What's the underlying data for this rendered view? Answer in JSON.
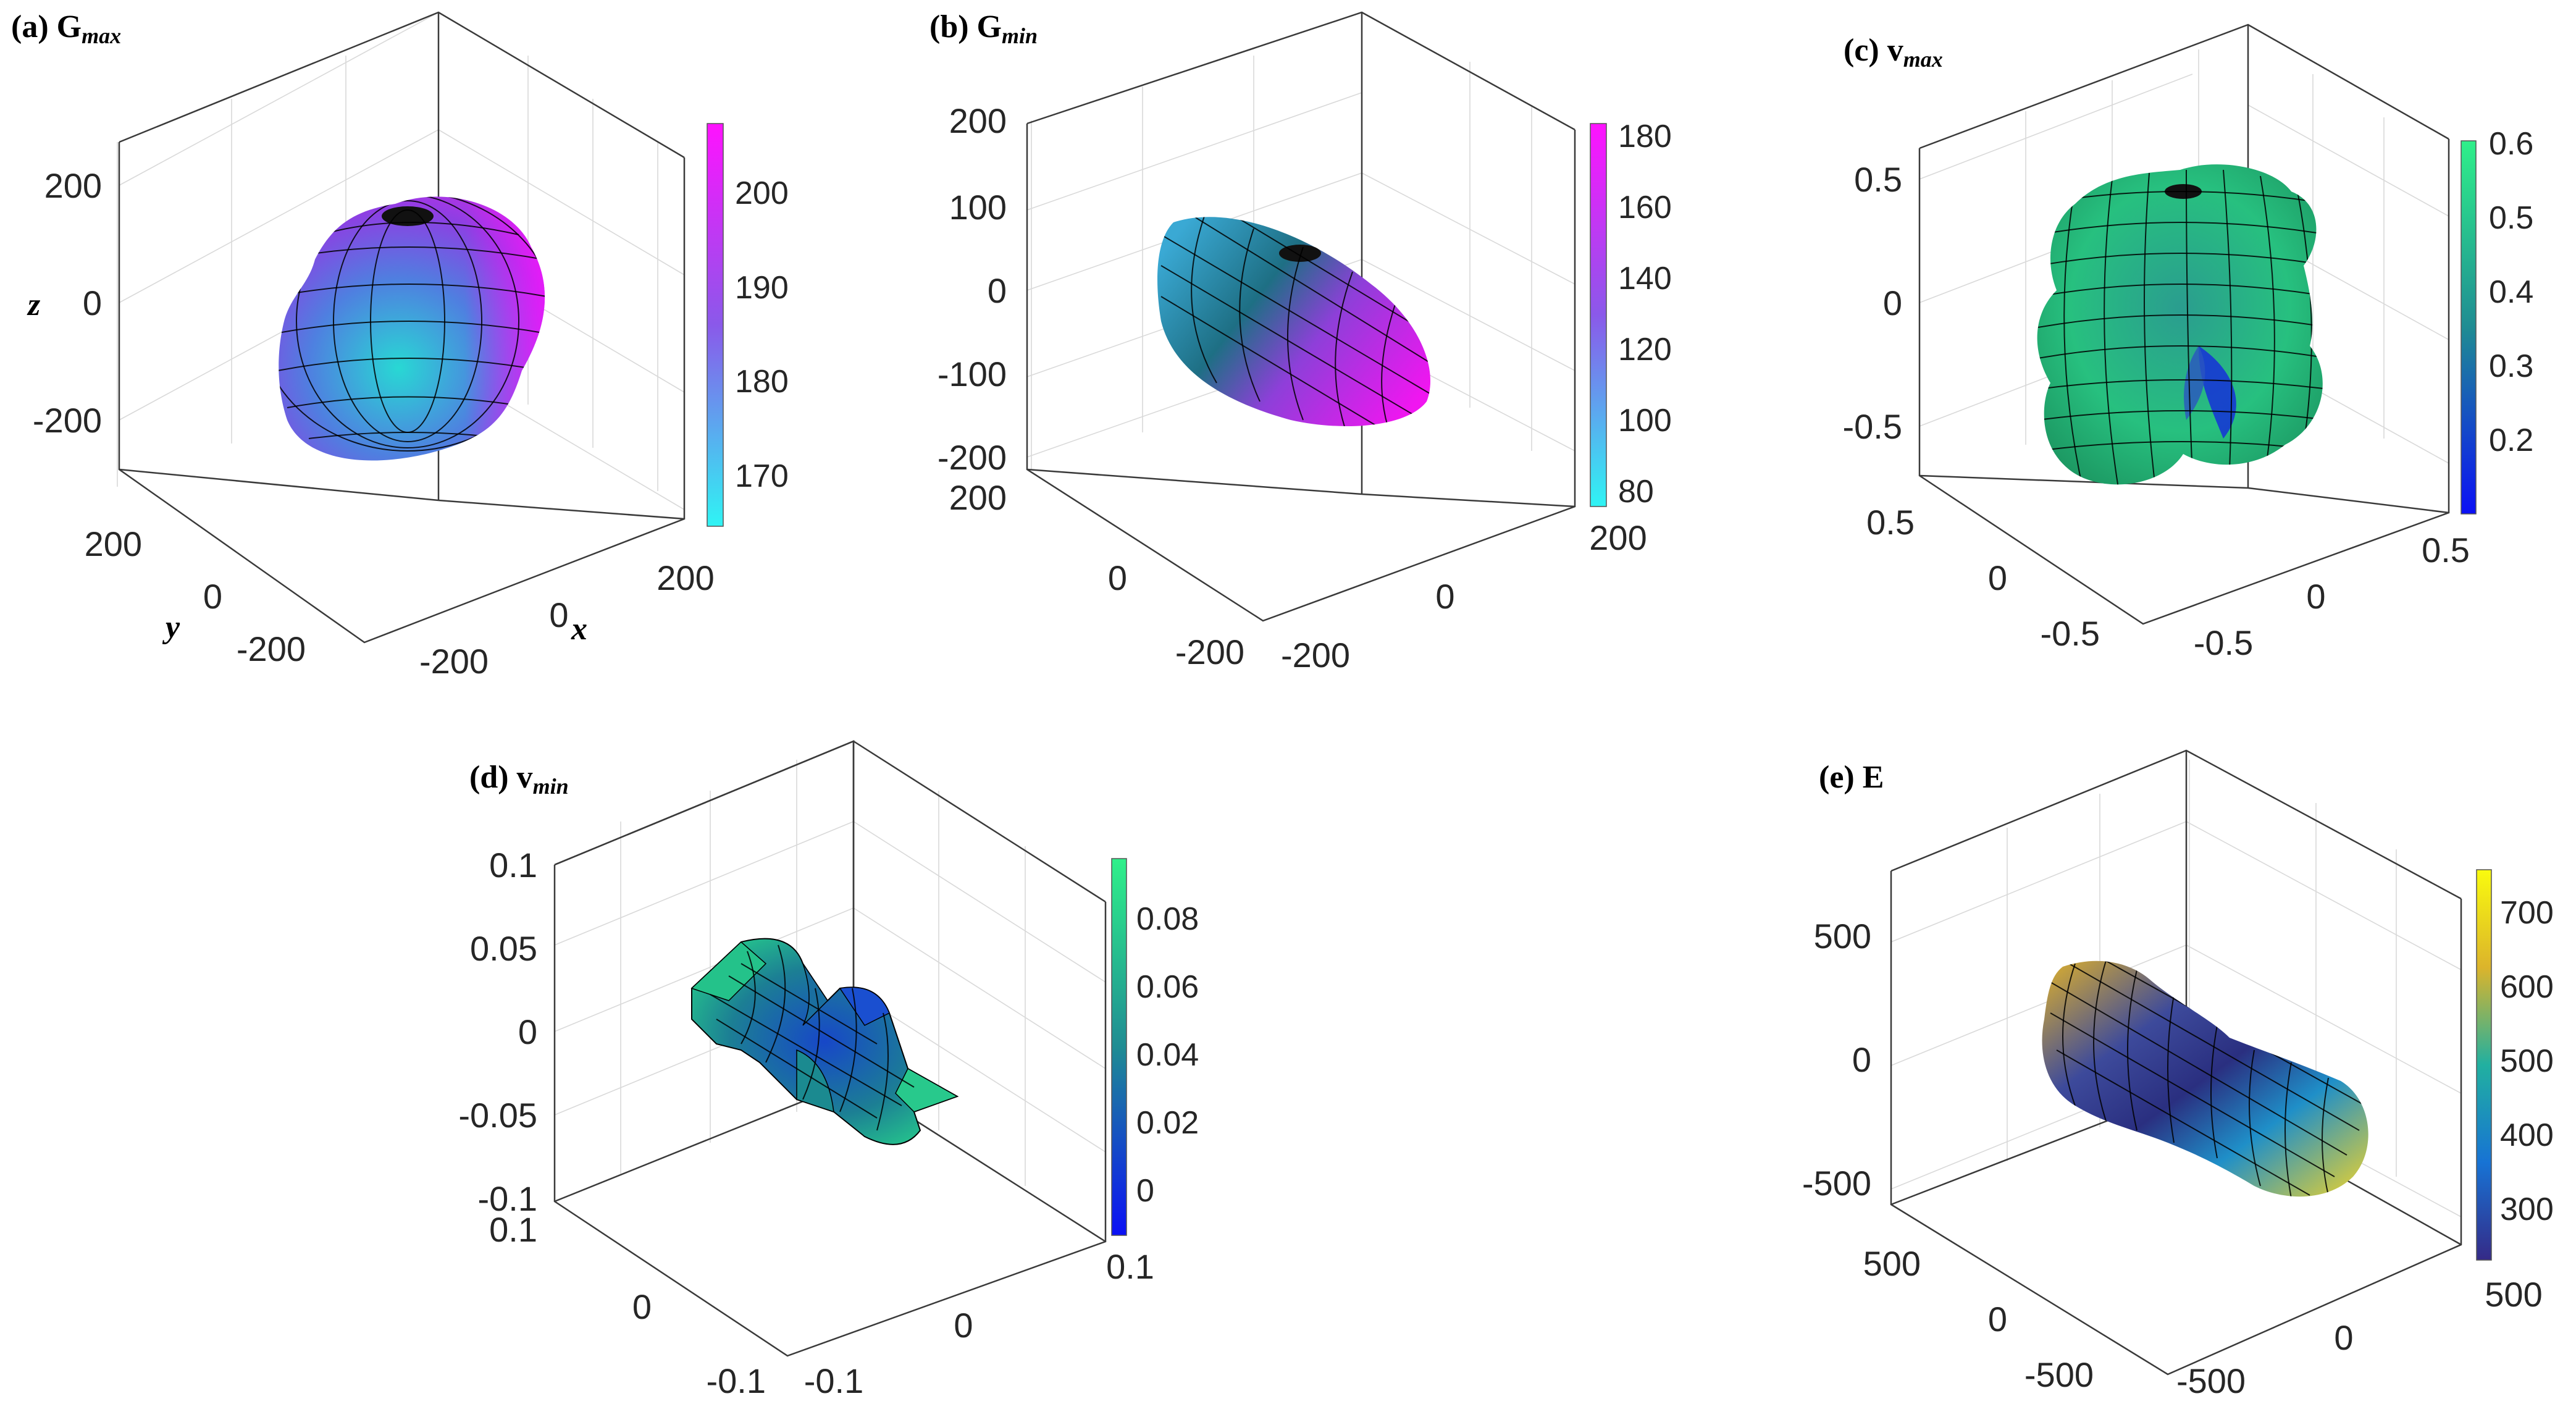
{
  "chart_data": [
    {
      "panel": "(a)",
      "type": "3d-surface",
      "title": "(a) G",
      "title_sub": "max",
      "xlabel": "x",
      "ylabel": "y",
      "zlabel": "z",
      "x_ticks": [
        "-200",
        "0",
        "200"
      ],
      "y_ticks": [
        "200",
        "0",
        "-200"
      ],
      "z_ticks": [
        "200",
        "0",
        "-200"
      ],
      "colorbar": {
        "ticks": [
          "200",
          "190",
          "180",
          "170"
        ],
        "range": [
          165,
          207
        ]
      },
      "colors": {
        "low": "#2ff4f4",
        "mid": "#8a59ea",
        "high": "#ff12ff"
      },
      "shape": "rounded-blob"
    },
    {
      "panel": "(b)",
      "type": "3d-surface",
      "title": "(b) G",
      "title_sub": "min",
      "x_ticks": [
        "-200",
        "0",
        "200"
      ],
      "y_ticks": [
        "200",
        "0",
        "-200"
      ],
      "z_ticks": [
        "200",
        "100",
        "0",
        "-100",
        "-200"
      ],
      "colorbar": {
        "ticks": [
          "180",
          "160",
          "140",
          "120",
          "100",
          "80"
        ],
        "range": [
          75,
          185
        ]
      },
      "colors": {
        "low": "#2ff4f4",
        "mid": "#8a59ea",
        "high": "#ff12ff"
      },
      "shape": "elongated-ellipsoid"
    },
    {
      "panel": "(c)",
      "type": "3d-surface",
      "title": "(c) v",
      "title_sub": "max",
      "x_ticks": [
        "-0.5",
        "0",
        "0.5"
      ],
      "y_ticks": [
        "0.5",
        "0",
        "-0.5"
      ],
      "z_ticks": [
        "0.5",
        "0",
        "-0.5"
      ],
      "colorbar": {
        "ticks": [
          "0.6",
          "0.5",
          "0.4",
          "0.3",
          "0.2"
        ],
        "range": [
          0.1,
          0.61
        ]
      },
      "colors": {
        "low": "#0b10f5",
        "mid": "#1f8c93",
        "high": "#2ff08a"
      },
      "shape": "four-lobed"
    },
    {
      "panel": "(d)",
      "type": "3d-surface",
      "title": "(d) v",
      "title_sub": "min",
      "x_ticks": [
        "-0.1",
        "0",
        "0.1"
      ],
      "y_ticks": [
        "0.1",
        "0",
        "-0.1"
      ],
      "z_ticks": [
        "0.1",
        "0.05",
        "0",
        "-0.05",
        "-0.1"
      ],
      "colorbar": {
        "ticks": [
          "0.08",
          "0.06",
          "0.04",
          "0.02",
          "0"
        ],
        "range": [
          -0.01,
          0.098
        ]
      },
      "colors": {
        "low": "#0b10f5",
        "mid": "#1f8c93",
        "high": "#2ff08a"
      },
      "shape": "flower-petals"
    },
    {
      "panel": "(e)",
      "type": "3d-surface",
      "title": "(e) E",
      "title_sub": "",
      "x_ticks": [
        "-500",
        "0",
        "500"
      ],
      "y_ticks": [
        "500",
        "0",
        "-500"
      ],
      "z_ticks": [
        "500",
        "0",
        "-500"
      ],
      "colorbar": {
        "ticks": [
          "700",
          "600",
          "500",
          "400",
          "300"
        ],
        "range": [
          235,
          765
        ]
      },
      "colors": {
        "low": "#352a87",
        "mid": "#21b0a0",
        "high": "#f9fb0e"
      },
      "shape": "dumbbell"
    }
  ]
}
